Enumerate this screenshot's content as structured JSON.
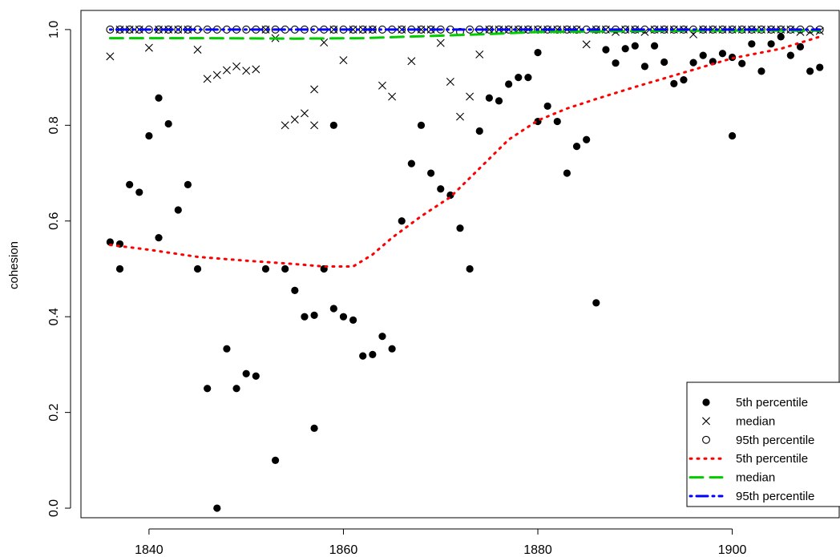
{
  "chart_data": {
    "type": "scatter",
    "title": "",
    "xlabel": "",
    "ylabel": "cohesion",
    "xlim": [
      1833,
      1911
    ],
    "ylim": [
      -0.02,
      1.04
    ],
    "xticks": [
      1840,
      1860,
      1880,
      1900
    ],
    "yticks": [
      0.0,
      0.2,
      0.4,
      0.6,
      0.8,
      1.0
    ],
    "grid": false,
    "legend_position": "bottom-right",
    "legend": [
      {
        "label": "5th percentile",
        "symbol": "filled-circle",
        "color": "#000000"
      },
      {
        "label": "median",
        "symbol": "cross",
        "color": "#000000"
      },
      {
        "label": "95th percentile",
        "symbol": "open-circle",
        "color": "#000000"
      },
      {
        "label": "5th percentile",
        "symbol": "dotted-line",
        "color": "#ff0000"
      },
      {
        "label": "median",
        "symbol": "dashed-line",
        "color": "#00cc00"
      },
      {
        "label": "95th percentile",
        "symbol": "dotdash-line",
        "color": "#0000ff"
      }
    ],
    "series": [
      {
        "name": "5th percentile",
        "kind": "points",
        "marker": "filled-circle",
        "color": "#000000",
        "points": [
          [
            1836,
            0.556
          ],
          [
            1837,
            0.5
          ],
          [
            1837,
            0.552
          ],
          [
            1838,
            0.676
          ],
          [
            1839,
            0.66
          ],
          [
            1840,
            0.778
          ],
          [
            1841,
            0.857
          ],
          [
            1841,
            0.565
          ],
          [
            1842,
            0.803
          ],
          [
            1843,
            0.623
          ],
          [
            1844,
            0.676
          ],
          [
            1845,
            0.5
          ],
          [
            1846,
            0.25
          ],
          [
            1847,
            0.0
          ],
          [
            1848,
            0.333
          ],
          [
            1849,
            0.25
          ],
          [
            1850,
            0.281
          ],
          [
            1851,
            0.276
          ],
          [
            1852,
            0.5
          ],
          [
            1853,
            0.1
          ],
          [
            1854,
            0.5
          ],
          [
            1855,
            0.455
          ],
          [
            1856,
            0.4
          ],
          [
            1857,
            0.403
          ],
          [
            1857,
            0.167
          ],
          [
            1858,
            0.5
          ],
          [
            1859,
            0.8
          ],
          [
            1859,
            0.417
          ],
          [
            1860,
            0.4
          ],
          [
            1861,
            0.393
          ],
          [
            1862,
            0.318
          ],
          [
            1863,
            0.321
          ],
          [
            1864,
            0.359
          ],
          [
            1865,
            0.333
          ],
          [
            1866,
            0.6
          ],
          [
            1867,
            0.72
          ],
          [
            1868,
            0.8
          ],
          [
            1869,
            0.7
          ],
          [
            1870,
            0.667
          ],
          [
            1871,
            0.654
          ],
          [
            1872,
            0.585
          ],
          [
            1873,
            0.5
          ],
          [
            1874,
            0.788
          ],
          [
            1875,
            0.857
          ],
          [
            1876,
            0.851
          ],
          [
            1877,
            0.886
          ],
          [
            1878,
            0.9
          ],
          [
            1879,
            0.9
          ],
          [
            1880,
            0.952
          ],
          [
            1880,
            0.808
          ],
          [
            1881,
            0.84
          ],
          [
            1882,
            0.808
          ],
          [
            1883,
            0.7
          ],
          [
            1884,
            0.756
          ],
          [
            1885,
            0.77
          ],
          [
            1886,
            0.429
          ],
          [
            1887,
            0.958
          ],
          [
            1888,
            0.93
          ],
          [
            1889,
            0.96
          ],
          [
            1890,
            0.966
          ],
          [
            1891,
            0.923
          ],
          [
            1892,
            0.966
          ],
          [
            1893,
            0.932
          ],
          [
            1894,
            0.887
          ],
          [
            1895,
            0.895
          ],
          [
            1896,
            0.931
          ],
          [
            1897,
            0.946
          ],
          [
            1898,
            0.933
          ],
          [
            1899,
            0.95
          ],
          [
            1900,
            0.942
          ],
          [
            1900,
            0.778
          ],
          [
            1901,
            0.929
          ],
          [
            1902,
            0.97
          ],
          [
            1903,
            0.913
          ],
          [
            1904,
            0.97
          ],
          [
            1905,
            0.985
          ],
          [
            1906,
            0.946
          ],
          [
            1907,
            0.964
          ],
          [
            1908,
            0.913
          ],
          [
            1909,
            0.921
          ]
        ]
      },
      {
        "name": "median",
        "kind": "points",
        "marker": "cross",
        "color": "#000000",
        "points": [
          [
            1836,
            0.944
          ],
          [
            1837,
            1.0
          ],
          [
            1838,
            1.0
          ],
          [
            1839,
            1.0
          ],
          [
            1840,
            0.962
          ],
          [
            1841,
            1.0
          ],
          [
            1842,
            1.0
          ],
          [
            1843,
            1.0
          ],
          [
            1844,
            1.0
          ],
          [
            1845,
            0.958
          ],
          [
            1846,
            0.897
          ],
          [
            1847,
            0.905
          ],
          [
            1848,
            0.915
          ],
          [
            1849,
            0.923
          ],
          [
            1850,
            0.914
          ],
          [
            1851,
            0.917
          ],
          [
            1852,
            1.0
          ],
          [
            1853,
            0.982
          ],
          [
            1854,
            0.8
          ],
          [
            1855,
            0.812
          ],
          [
            1856,
            0.825
          ],
          [
            1857,
            0.8
          ],
          [
            1857,
            0.875
          ],
          [
            1858,
            0.973
          ],
          [
            1859,
            1.0
          ],
          [
            1860,
            0.936
          ],
          [
            1861,
            1.0
          ],
          [
            1862,
            1.0
          ],
          [
            1863,
            1.0
          ],
          [
            1864,
            0.883
          ],
          [
            1865,
            0.86
          ],
          [
            1866,
            1.0
          ],
          [
            1867,
            0.934
          ],
          [
            1868,
            1.0
          ],
          [
            1869,
            1.0
          ],
          [
            1870,
            0.972
          ],
          [
            1871,
            0.891
          ],
          [
            1872,
            0.818
          ],
          [
            1873,
            0.86
          ],
          [
            1874,
            0.948
          ],
          [
            1875,
            1.0
          ],
          [
            1876,
            1.0
          ],
          [
            1877,
            1.0
          ],
          [
            1878,
            1.0
          ],
          [
            1879,
            1.0
          ],
          [
            1880,
            1.0
          ],
          [
            1881,
            1.0
          ],
          [
            1882,
            1.0
          ],
          [
            1883,
            1.0
          ],
          [
            1884,
            1.0
          ],
          [
            1885,
            0.969
          ],
          [
            1886,
            1.0
          ],
          [
            1887,
            1.0
          ],
          [
            1888,
            0.995
          ],
          [
            1889,
            1.0
          ],
          [
            1890,
            1.0
          ],
          [
            1891,
            0.995
          ],
          [
            1892,
            1.0
          ],
          [
            1893,
            1.0
          ],
          [
            1894,
            1.0
          ],
          [
            1895,
            1.0
          ],
          [
            1896,
            0.99
          ],
          [
            1897,
            1.0
          ],
          [
            1898,
            1.0
          ],
          [
            1899,
            1.0
          ],
          [
            1900,
            1.0
          ],
          [
            1901,
            1.0
          ],
          [
            1902,
            1.0
          ],
          [
            1903,
            1.0
          ],
          [
            1904,
            1.0
          ],
          [
            1905,
            1.0
          ],
          [
            1906,
            1.0
          ],
          [
            1907,
            0.995
          ],
          [
            1908,
            0.995
          ],
          [
            1909,
            0.997
          ]
        ]
      },
      {
        "name": "95th percentile",
        "kind": "points",
        "marker": "open-circle",
        "color": "#000000",
        "points": [
          [
            1836,
            1.0
          ],
          [
            1837,
            1.0
          ],
          [
            1838,
            1.0
          ],
          [
            1839,
            1.0
          ],
          [
            1840,
            1.0
          ],
          [
            1841,
            1.0
          ],
          [
            1842,
            1.0
          ],
          [
            1843,
            1.0
          ],
          [
            1844,
            1.0
          ],
          [
            1845,
            1.0
          ],
          [
            1846,
            1.0
          ],
          [
            1847,
            1.0
          ],
          [
            1848,
            1.0
          ],
          [
            1849,
            1.0
          ],
          [
            1850,
            1.0
          ],
          [
            1851,
            1.0
          ],
          [
            1852,
            1.0
          ],
          [
            1853,
            1.0
          ],
          [
            1854,
            1.0
          ],
          [
            1855,
            1.0
          ],
          [
            1856,
            1.0
          ],
          [
            1857,
            1.0
          ],
          [
            1858,
            1.0
          ],
          [
            1859,
            1.0
          ],
          [
            1860,
            1.0
          ],
          [
            1861,
            1.0
          ],
          [
            1862,
            1.0
          ],
          [
            1863,
            1.0
          ],
          [
            1864,
            1.0
          ],
          [
            1865,
            1.0
          ],
          [
            1866,
            1.0
          ],
          [
            1867,
            1.0
          ],
          [
            1868,
            1.0
          ],
          [
            1869,
            1.0
          ],
          [
            1870,
            1.0
          ],
          [
            1871,
            1.0
          ],
          [
            1872,
            0.995
          ],
          [
            1873,
            1.0
          ],
          [
            1874,
            1.0
          ],
          [
            1875,
            1.0
          ],
          [
            1876,
            1.0
          ],
          [
            1877,
            1.0
          ],
          [
            1878,
            1.0
          ],
          [
            1879,
            1.0
          ],
          [
            1880,
            1.0
          ],
          [
            1881,
            1.0
          ],
          [
            1882,
            1.0
          ],
          [
            1883,
            1.0
          ],
          [
            1884,
            1.0
          ],
          [
            1885,
            1.0
          ],
          [
            1886,
            1.0
          ],
          [
            1887,
            1.0
          ],
          [
            1888,
            1.0
          ],
          [
            1889,
            1.0
          ],
          [
            1890,
            1.0
          ],
          [
            1891,
            1.0
          ],
          [
            1892,
            1.0
          ],
          [
            1893,
            1.0
          ],
          [
            1894,
            1.0
          ],
          [
            1895,
            1.0
          ],
          [
            1896,
            1.0
          ],
          [
            1897,
            1.0
          ],
          [
            1898,
            1.0
          ],
          [
            1899,
            1.0
          ],
          [
            1900,
            1.0
          ],
          [
            1901,
            1.0
          ],
          [
            1902,
            1.0
          ],
          [
            1903,
            1.0
          ],
          [
            1904,
            1.0
          ],
          [
            1905,
            1.0
          ],
          [
            1906,
            1.0
          ],
          [
            1907,
            1.0
          ],
          [
            1908,
            1.0
          ],
          [
            1909,
            1.0
          ]
        ]
      },
      {
        "name": "5th percentile",
        "kind": "line",
        "style": "dotted",
        "color": "#ff0000",
        "points": [
          [
            1836,
            0.55
          ],
          [
            1840,
            0.54
          ],
          [
            1845,
            0.525
          ],
          [
            1850,
            0.517
          ],
          [
            1855,
            0.51
          ],
          [
            1858,
            0.505
          ],
          [
            1861,
            0.505
          ],
          [
            1863,
            0.53
          ],
          [
            1865,
            0.565
          ],
          [
            1868,
            0.61
          ],
          [
            1871,
            0.65
          ],
          [
            1874,
            0.71
          ],
          [
            1877,
            0.77
          ],
          [
            1880,
            0.81
          ],
          [
            1883,
            0.835
          ],
          [
            1886,
            0.855
          ],
          [
            1890,
            0.88
          ],
          [
            1895,
            0.91
          ],
          [
            1900,
            0.94
          ],
          [
            1905,
            0.96
          ],
          [
            1909,
            0.985
          ]
        ]
      },
      {
        "name": "median",
        "kind": "line",
        "style": "dashed",
        "color": "#00cc00",
        "points": [
          [
            1836,
            0.982
          ],
          [
            1845,
            0.982
          ],
          [
            1855,
            0.981
          ],
          [
            1862,
            0.982
          ],
          [
            1868,
            0.986
          ],
          [
            1874,
            0.99
          ],
          [
            1880,
            0.995
          ],
          [
            1890,
            0.997
          ],
          [
            1900,
            0.998
          ],
          [
            1909,
            0.998
          ]
        ]
      },
      {
        "name": "95th percentile",
        "kind": "line",
        "style": "dotdash",
        "color": "#0000ff",
        "points": [
          [
            1836,
            1.0
          ],
          [
            1909,
            1.0
          ]
        ]
      }
    ]
  }
}
